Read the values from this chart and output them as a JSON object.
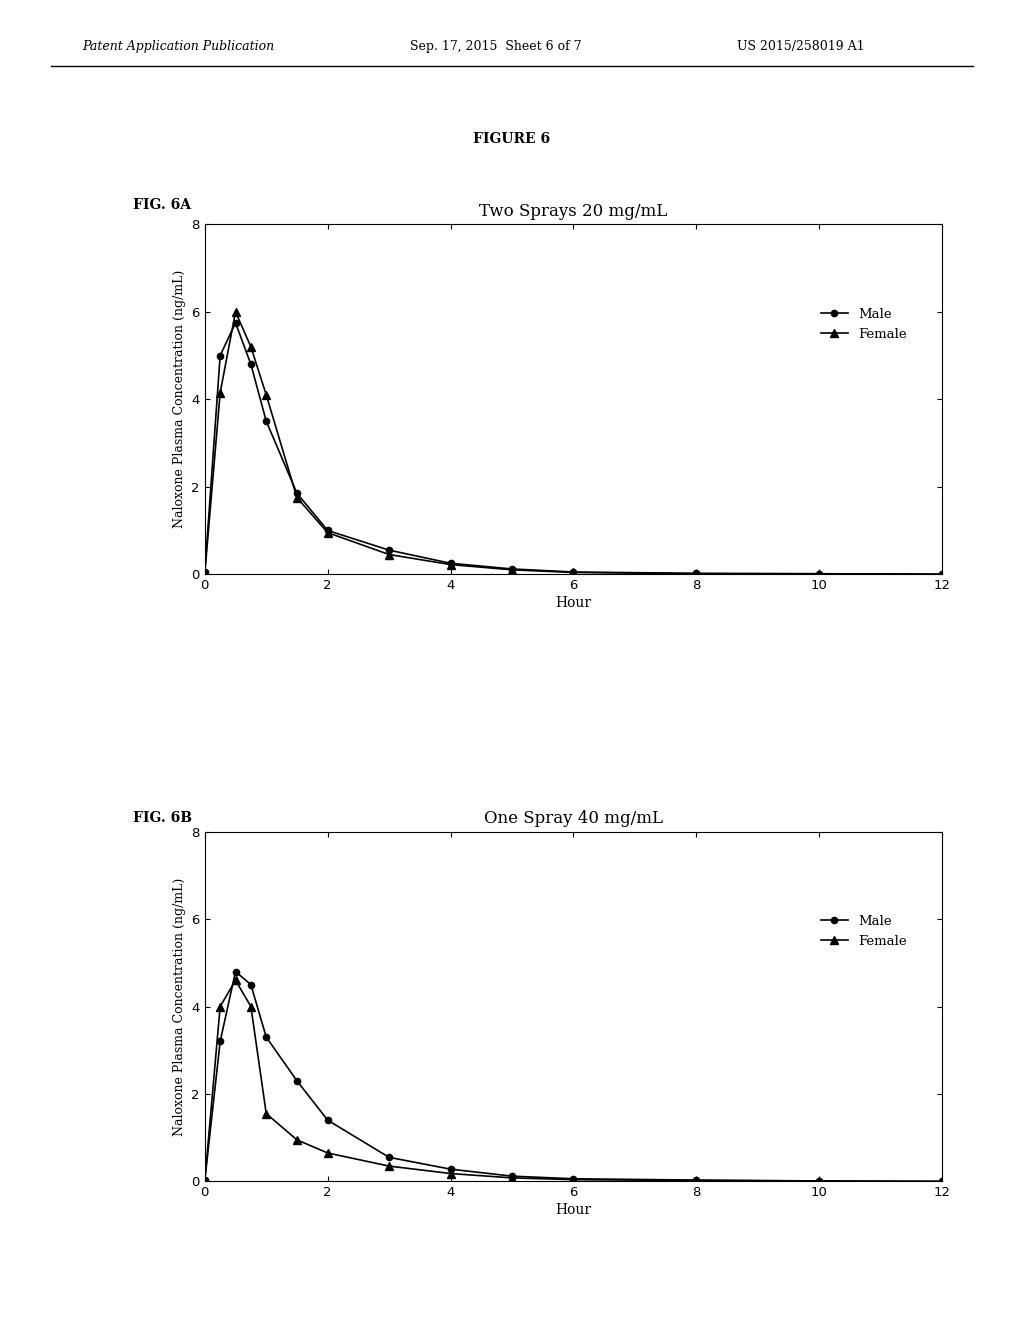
{
  "figure_label": "FIGURE 6",
  "fig6a_label": "FIG. 6A",
  "fig6b_label": "FIG. 6B",
  "fig6a_title": "Two Sprays 20 mg/mL",
  "fig6b_title": "One Spray 40 mg/mL",
  "ylabel": "Naloxone Plasma Concentration (ng/mL)",
  "xlabel": "Hour",
  "ylim": [
    0,
    8
  ],
  "xlim": [
    0,
    12
  ],
  "yticks": [
    0,
    2,
    4,
    6,
    8
  ],
  "xticks": [
    0,
    2,
    4,
    6,
    8,
    10,
    12
  ],
  "header_left": "Patent Application Publication",
  "header_mid": "Sep. 17, 2015  Sheet 6 of 7",
  "header_right": "US 2015/258019 A1",
  "fig6a_male_x": [
    0,
    0.25,
    0.5,
    0.75,
    1.0,
    1.5,
    2.0,
    3.0,
    4.0,
    5.0,
    6.0,
    8.0,
    10.0,
    12.0
  ],
  "fig6a_male_y": [
    0.05,
    5.0,
    5.75,
    4.8,
    3.5,
    1.85,
    1.0,
    0.55,
    0.25,
    0.12,
    0.05,
    0.02,
    0.01,
    0.0
  ],
  "fig6a_female_x": [
    0,
    0.25,
    0.5,
    0.75,
    1.0,
    1.5,
    2.0,
    3.0,
    4.0,
    5.0,
    6.0,
    8.0,
    10.0,
    12.0
  ],
  "fig6a_female_y": [
    0.02,
    4.15,
    6.0,
    5.2,
    4.1,
    1.75,
    0.95,
    0.45,
    0.22,
    0.1,
    0.04,
    0.01,
    0.01,
    0.0
  ],
  "fig6b_male_x": [
    0,
    0.25,
    0.5,
    0.75,
    1.0,
    1.5,
    2.0,
    3.0,
    4.0,
    5.0,
    6.0,
    8.0,
    10.0,
    12.0
  ],
  "fig6b_male_y": [
    0.03,
    3.2,
    4.8,
    4.5,
    3.3,
    2.3,
    1.4,
    0.55,
    0.28,
    0.12,
    0.06,
    0.03,
    0.01,
    0.0
  ],
  "fig6b_female_x": [
    0,
    0.25,
    0.5,
    0.75,
    1.0,
    1.5,
    2.0,
    3.0,
    4.0,
    5.0,
    6.0,
    8.0,
    10.0,
    12.0
  ],
  "fig6b_female_y": [
    0.02,
    4.0,
    4.6,
    4.0,
    1.55,
    0.95,
    0.65,
    0.35,
    0.18,
    0.08,
    0.04,
    0.02,
    0.01,
    0.0
  ],
  "line_color": "#000000",
  "bg_color": "#ffffff"
}
